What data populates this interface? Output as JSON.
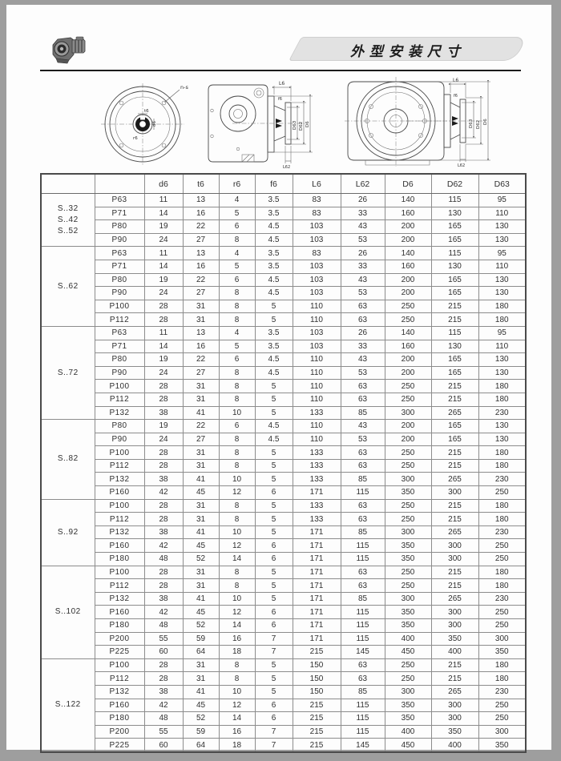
{
  "header": {
    "banner_title": "外型安装尺寸"
  },
  "drawings": {
    "flange": {
      "leader": "n-s",
      "t": "t6",
      "d": "d6",
      "r": "r6"
    },
    "side": {
      "l6": "L6",
      "f6": "f6",
      "d63": "D63",
      "d62": "D62",
      "d6": "D6",
      "l62": "L62"
    },
    "front": {
      "l6": "L6",
      "f6": "f6",
      "d63": "D63",
      "d62": "D62",
      "d6": "D6",
      "l62": "L62"
    }
  },
  "table": {
    "headers": [
      "",
      "",
      "d6",
      "t6",
      "r6",
      "f6",
      "L6",
      "L62",
      "D6",
      "D62",
      "D63"
    ],
    "groups": [
      {
        "label": [
          "S..32",
          "S..42",
          "S..52"
        ],
        "rows": [
          {
            "model": "P63",
            "values": [
              "11",
              "13",
              "4",
              "3.5",
              "83",
              "26",
              "140",
              "115",
              "95"
            ]
          },
          {
            "model": "P71",
            "values": [
              "14",
              "16",
              "5",
              "3.5",
              "83",
              "33",
              "160",
              "130",
              "110"
            ]
          },
          {
            "model": "P80",
            "values": [
              "19",
              "22",
              "6",
              "4.5",
              "103",
              "43",
              "200",
              "165",
              "130"
            ]
          },
          {
            "model": "P90",
            "values": [
              "24",
              "27",
              "8",
              "4.5",
              "103",
              "53",
              "200",
              "165",
              "130"
            ]
          }
        ]
      },
      {
        "label": [
          "S..62"
        ],
        "rows": [
          {
            "model": "P63",
            "values": [
              "11",
              "13",
              "4",
              "3.5",
              "83",
              "26",
              "140",
              "115",
              "95"
            ]
          },
          {
            "model": "P71",
            "values": [
              "14",
              "16",
              "5",
              "3.5",
              "103",
              "33",
              "160",
              "130",
              "110"
            ]
          },
          {
            "model": "P80",
            "values": [
              "19",
              "22",
              "6",
              "4.5",
              "103",
              "43",
              "200",
              "165",
              "130"
            ]
          },
          {
            "model": "P90",
            "values": [
              "24",
              "27",
              "8",
              "4.5",
              "103",
              "53",
              "200",
              "165",
              "130"
            ]
          },
          {
            "model": "P100",
            "values": [
              "28",
              "31",
              "8",
              "5",
              "110",
              "63",
              "250",
              "215",
              "180"
            ]
          },
          {
            "model": "P112",
            "values": [
              "28",
              "31",
              "8",
              "5",
              "110",
              "63",
              "250",
              "215",
              "180"
            ]
          }
        ]
      },
      {
        "label": [
          "S..72"
        ],
        "rows": [
          {
            "model": "P63",
            "values": [
              "11",
              "13",
              "4",
              "3.5",
              "103",
              "26",
              "140",
              "115",
              "95"
            ]
          },
          {
            "model": "P71",
            "values": [
              "14",
              "16",
              "5",
              "3.5",
              "103",
              "33",
              "160",
              "130",
              "110"
            ]
          },
          {
            "model": "P80",
            "values": [
              "19",
              "22",
              "6",
              "4.5",
              "110",
              "43",
              "200",
              "165",
              "130"
            ]
          },
          {
            "model": "P90",
            "values": [
              "24",
              "27",
              "8",
              "4.5",
              "110",
              "53",
              "200",
              "165",
              "130"
            ]
          },
          {
            "model": "P100",
            "values": [
              "28",
              "31",
              "8",
              "5",
              "110",
              "63",
              "250",
              "215",
              "180"
            ]
          },
          {
            "model": "P112",
            "values": [
              "28",
              "31",
              "8",
              "5",
              "110",
              "63",
              "250",
              "215",
              "180"
            ]
          },
          {
            "model": "P132",
            "values": [
              "38",
              "41",
              "10",
              "5",
              "133",
              "85",
              "300",
              "265",
              "230"
            ]
          }
        ]
      },
      {
        "label": [
          "S..82"
        ],
        "rows": [
          {
            "model": "P80",
            "values": [
              "19",
              "22",
              "6",
              "4.5",
              "110",
              "43",
              "200",
              "165",
              "130"
            ]
          },
          {
            "model": "P90",
            "values": [
              "24",
              "27",
              "8",
              "4.5",
              "110",
              "53",
              "200",
              "165",
              "130"
            ]
          },
          {
            "model": "P100",
            "values": [
              "28",
              "31",
              "8",
              "5",
              "133",
              "63",
              "250",
              "215",
              "180"
            ]
          },
          {
            "model": "P112",
            "values": [
              "28",
              "31",
              "8",
              "5",
              "133",
              "63",
              "250",
              "215",
              "180"
            ]
          },
          {
            "model": "P132",
            "values": [
              "38",
              "41",
              "10",
              "5",
              "133",
              "85",
              "300",
              "265",
              "230"
            ]
          },
          {
            "model": "P160",
            "values": [
              "42",
              "45",
              "12",
              "6",
              "171",
              "115",
              "350",
              "300",
              "250"
            ]
          }
        ]
      },
      {
        "label": [
          "S..92"
        ],
        "rows": [
          {
            "model": "P100",
            "values": [
              "28",
              "31",
              "8",
              "5",
              "133",
              "63",
              "250",
              "215",
              "180"
            ]
          },
          {
            "model": "P112",
            "values": [
              "28",
              "31",
              "8",
              "5",
              "133",
              "63",
              "250",
              "215",
              "180"
            ]
          },
          {
            "model": "P132",
            "values": [
              "38",
              "41",
              "10",
              "5",
              "171",
              "85",
              "300",
              "265",
              "230"
            ]
          },
          {
            "model": "P160",
            "values": [
              "42",
              "45",
              "12",
              "6",
              "171",
              "115",
              "350",
              "300",
              "250"
            ]
          },
          {
            "model": "P180",
            "values": [
              "48",
              "52",
              "14",
              "6",
              "171",
              "115",
              "350",
              "300",
              "250"
            ]
          }
        ]
      },
      {
        "label": [
          "S..102"
        ],
        "rows": [
          {
            "model": "P100",
            "values": [
              "28",
              "31",
              "8",
              "5",
              "171",
              "63",
              "250",
              "215",
              "180"
            ]
          },
          {
            "model": "P112",
            "values": [
              "28",
              "31",
              "8",
              "5",
              "171",
              "63",
              "250",
              "215",
              "180"
            ]
          },
          {
            "model": "P132",
            "values": [
              "38",
              "41",
              "10",
              "5",
              "171",
              "85",
              "300",
              "265",
              "230"
            ]
          },
          {
            "model": "P160",
            "values": [
              "42",
              "45",
              "12",
              "6",
              "171",
              "115",
              "350",
              "300",
              "250"
            ]
          },
          {
            "model": "P180",
            "values": [
              "48",
              "52",
              "14",
              "6",
              "171",
              "115",
              "350",
              "300",
              "250"
            ]
          },
          {
            "model": "P200",
            "values": [
              "55",
              "59",
              "16",
              "7",
              "171",
              "115",
              "400",
              "350",
              "300"
            ]
          },
          {
            "model": "P225",
            "values": [
              "60",
              "64",
              "18",
              "7",
              "215",
              "145",
              "450",
              "400",
              "350"
            ]
          }
        ]
      },
      {
        "label": [
          "S..122"
        ],
        "rows": [
          {
            "model": "P100",
            "values": [
              "28",
              "31",
              "8",
              "5",
              "150",
              "63",
              "250",
              "215",
              "180"
            ]
          },
          {
            "model": "P112",
            "values": [
              "28",
              "31",
              "8",
              "5",
              "150",
              "63",
              "250",
              "215",
              "180"
            ]
          },
          {
            "model": "P132",
            "values": [
              "38",
              "41",
              "10",
              "5",
              "150",
              "85",
              "300",
              "265",
              "230"
            ]
          },
          {
            "model": "P160",
            "values": [
              "42",
              "45",
              "12",
              "6",
              "215",
              "115",
              "350",
              "300",
              "250"
            ]
          },
          {
            "model": "P180",
            "values": [
              "48",
              "52",
              "14",
              "6",
              "215",
              "115",
              "350",
              "300",
              "250"
            ]
          },
          {
            "model": "P200",
            "values": [
              "55",
              "59",
              "16",
              "7",
              "215",
              "115",
              "400",
              "350",
              "300"
            ]
          },
          {
            "model": "P225",
            "values": [
              "60",
              "64",
              "18",
              "7",
              "215",
              "145",
              "450",
              "400",
              "350"
            ]
          }
        ]
      }
    ]
  }
}
